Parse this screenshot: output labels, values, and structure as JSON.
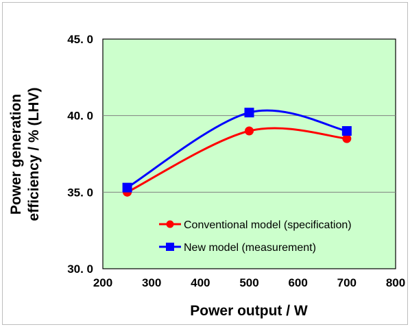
{
  "chart_data": {
    "type": "line",
    "title": "",
    "xlabel": "Power output / W",
    "ylabel_line1": "Power generation",
    "ylabel_line2": "efficiency / % (LHV)",
    "xlim": [
      200,
      800
    ],
    "ylim": [
      30.0,
      45.0
    ],
    "x_ticks": [
      200,
      300,
      400,
      500,
      600,
      700,
      800
    ],
    "y_ticks": [
      30.0,
      35.0,
      40.0,
      45.0
    ],
    "x_tick_labels": [
      "200",
      "300",
      "400",
      "500",
      "600",
      "700",
      "800"
    ],
    "y_tick_labels": [
      "30. 0",
      "35. 0",
      "40. 0",
      "45. 0"
    ],
    "grid": "horizontal",
    "legend_placement": "bottom-right",
    "plot_background": "#ccffcc",
    "series": [
      {
        "name": "Conventional model (specification)",
        "color": "#ff0000",
        "marker": "circle",
        "x": [
          250,
          500,
          700
        ],
        "y": [
          35.0,
          39.0,
          38.5
        ]
      },
      {
        "name": "New model (measurement)",
        "color": "#0000ff",
        "marker": "square",
        "x": [
          250,
          500,
          700
        ],
        "y": [
          35.3,
          40.2,
          39.0
        ]
      }
    ]
  }
}
